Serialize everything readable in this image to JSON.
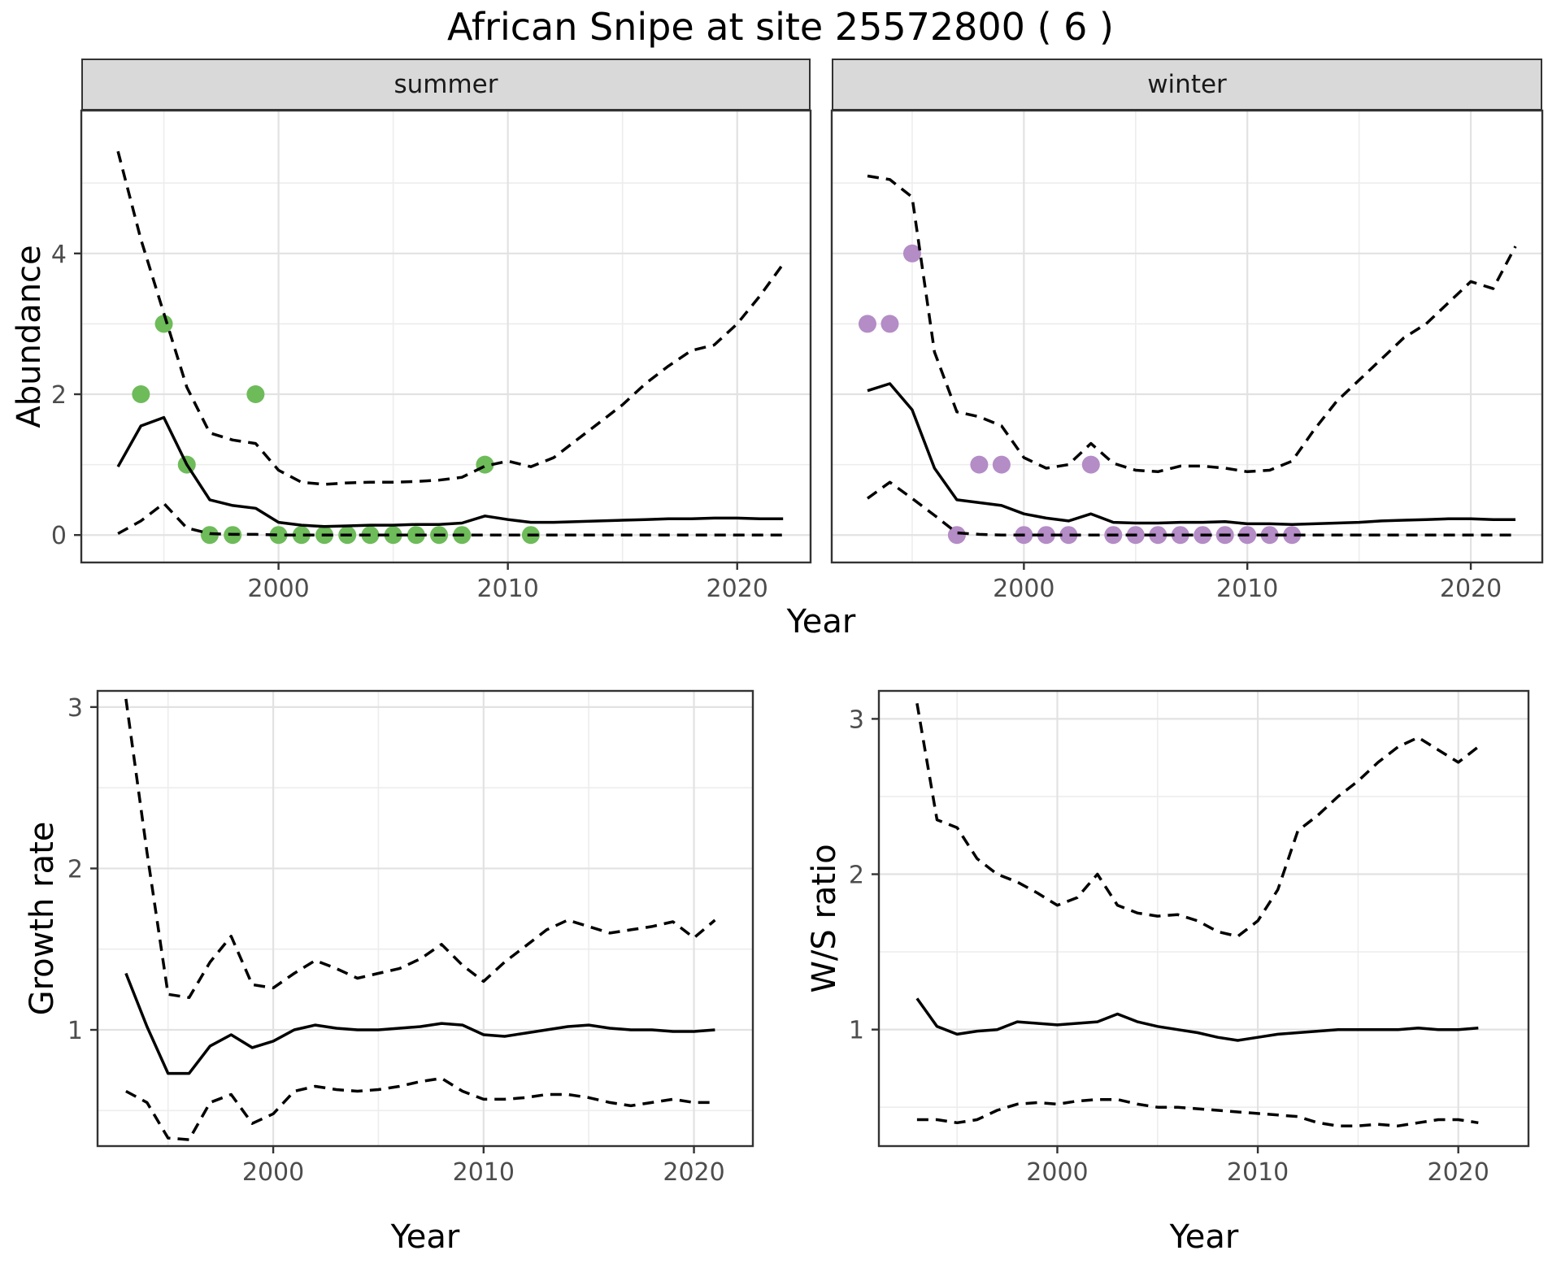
{
  "title": "African Snipe at site 25572800 ( 6 )",
  "labels": {
    "facet_summer": "summer",
    "facet_winter": "winter",
    "abundance_axis": "Abundance",
    "growth_axis": "Growth rate",
    "ws_axis": "W/S ratio",
    "year_axis_top": "Year",
    "year_axis_growth": "Year",
    "year_axis_ws": "Year"
  },
  "colors": {
    "summer_points": "#6EBB5A",
    "winter_points": "#B48CC6",
    "line": "#000000",
    "strip_bg": "#D9D9D9",
    "tick_label": "#4D4D4D",
    "grid_major": "#E2E2E2",
    "grid_minor": "#EDEDED",
    "panel_border": "#333333",
    "panel_bg": "#FFFFFF"
  },
  "chart_data": [
    {
      "id": "abundance-summer",
      "type": "line",
      "facet": "summer",
      "xlabel": "Year",
      "ylabel": "Abundance",
      "xlim": [
        1991.4,
        2023.2
      ],
      "ylim": [
        -0.39,
        6.03
      ],
      "x_major_ticks": [
        2000,
        2010,
        2020
      ],
      "x_minor_ticks": [
        1995,
        2005,
        2015
      ],
      "y_major_ticks": [
        0,
        2,
        4
      ],
      "y_minor_ticks": [
        1,
        3,
        5
      ],
      "x": [
        1993,
        1994,
        1995,
        1996,
        1997,
        1998,
        1999,
        2000,
        2001,
        2002,
        2003,
        2004,
        2005,
        2006,
        2007,
        2008,
        2009,
        2010,
        2011,
        2012,
        2013,
        2014,
        2015,
        2016,
        2017,
        2018,
        2019,
        2020,
        2021,
        2022
      ],
      "series": [
        {
          "name": "median-estimate",
          "style": "solid",
          "values": [
            0.97,
            1.55,
            1.67,
            1.0,
            0.5,
            0.42,
            0.38,
            0.18,
            0.14,
            0.12,
            0.13,
            0.14,
            0.14,
            0.15,
            0.15,
            0.17,
            0.27,
            0.22,
            0.18,
            0.18,
            0.19,
            0.2,
            0.21,
            0.22,
            0.23,
            0.23,
            0.24,
            0.24,
            0.23,
            0.23
          ]
        },
        {
          "name": "upper-credible-interval",
          "style": "dashed",
          "values": [
            5.45,
            4.2,
            3.15,
            2.1,
            1.45,
            1.35,
            1.3,
            0.92,
            0.75,
            0.72,
            0.74,
            0.75,
            0.75,
            0.76,
            0.78,
            0.82,
            0.98,
            1.05,
            0.97,
            1.1,
            1.35,
            1.6,
            1.85,
            2.15,
            2.4,
            2.62,
            2.7,
            3.0,
            3.4,
            3.85
          ]
        },
        {
          "name": "lower-credible-interval",
          "style": "dashed",
          "values": [
            0.02,
            0.2,
            0.45,
            0.1,
            0.02,
            0.01,
            0.01,
            0,
            0,
            0,
            0,
            0,
            0,
            0,
            0,
            0,
            0,
            0,
            0,
            0,
            0,
            0,
            0,
            0,
            0,
            0,
            0,
            0,
            0,
            0
          ]
        }
      ],
      "points": {
        "name": "observed-count",
        "color_key": "summer_points",
        "x": [
          1994,
          1995,
          1996,
          1997,
          1998,
          1999,
          2000,
          2001,
          2002,
          2003,
          2004,
          2005,
          2006,
          2007,
          2008,
          2009,
          2011
        ],
        "y": [
          2,
          3,
          1,
          0,
          0,
          2,
          0,
          0,
          0,
          0,
          0,
          0,
          0,
          0,
          0,
          1,
          0
        ]
      }
    },
    {
      "id": "abundance-winter",
      "type": "line",
      "facet": "winter",
      "xlabel": "Year",
      "ylabel": "Abundance",
      "xlim": [
        1991.4,
        2023.2
      ],
      "ylim": [
        -0.39,
        6.03
      ],
      "x_major_ticks": [
        2000,
        2010,
        2020
      ],
      "x_minor_ticks": [
        1995,
        2005,
        2015
      ],
      "y_major_ticks": [
        0,
        2,
        4
      ],
      "y_minor_ticks": [
        1,
        3,
        5
      ],
      "x": [
        1993,
        1994,
        1995,
        1996,
        1997,
        1998,
        1999,
        2000,
        2001,
        2002,
        2003,
        2004,
        2005,
        2006,
        2007,
        2008,
        2009,
        2010,
        2011,
        2012,
        2013,
        2014,
        2015,
        2016,
        2017,
        2018,
        2019,
        2020,
        2021,
        2022
      ],
      "series": [
        {
          "name": "median-estimate",
          "style": "solid",
          "values": [
            2.05,
            2.15,
            1.78,
            0.95,
            0.5,
            0.46,
            0.42,
            0.3,
            0.24,
            0.2,
            0.3,
            0.18,
            0.17,
            0.17,
            0.18,
            0.18,
            0.19,
            0.16,
            0.16,
            0.15,
            0.16,
            0.17,
            0.18,
            0.2,
            0.21,
            0.22,
            0.23,
            0.23,
            0.22,
            0.22
          ]
        },
        {
          "name": "upper-credible-interval",
          "style": "dashed",
          "values": [
            5.1,
            5.05,
            4.8,
            2.6,
            1.75,
            1.68,
            1.55,
            1.1,
            0.95,
            1.0,
            1.3,
            1.02,
            0.92,
            0.9,
            0.98,
            0.98,
            0.95,
            0.9,
            0.92,
            1.05,
            1.5,
            1.9,
            2.2,
            2.5,
            2.8,
            3.0,
            3.3,
            3.6,
            3.5,
            4.1
          ]
        },
        {
          "name": "lower-credible-interval",
          "style": "dashed",
          "values": [
            0.52,
            0.75,
            0.52,
            0.28,
            0.03,
            0.01,
            0,
            0,
            0,
            0,
            0,
            0,
            0,
            0,
            0,
            0,
            0,
            0,
            0,
            0,
            0,
            0,
            0,
            0,
            0,
            0,
            0,
            0,
            0,
            0
          ]
        }
      ],
      "points": {
        "name": "observed-count",
        "color_key": "winter_points",
        "x": [
          1993,
          1994,
          1995,
          1997,
          1998,
          1999,
          2000,
          2001,
          2002,
          2003,
          2004,
          2005,
          2006,
          2007,
          2008,
          2009,
          2010,
          2011,
          2012
        ],
        "y": [
          3,
          3,
          4,
          0,
          1,
          1,
          0,
          0,
          0,
          1,
          0,
          0,
          0,
          0,
          0,
          0,
          0,
          0,
          0
        ]
      }
    },
    {
      "id": "growth-rate",
      "type": "line",
      "facet": null,
      "xlabel": "Year",
      "ylabel": "Growth rate",
      "xlim": [
        1991.65,
        2022.8
      ],
      "ylim": [
        0.28,
        3.1
      ],
      "x_major_ticks": [
        2000,
        2010,
        2020
      ],
      "x_minor_ticks": [
        1995,
        2005,
        2015
      ],
      "y_major_ticks": [
        1,
        2,
        3
      ],
      "y_minor_ticks": [
        0.5,
        1.5,
        2.5
      ],
      "x": [
        1993,
        1994,
        1995,
        1996,
        1997,
        1998,
        1999,
        2000,
        2001,
        2002,
        2003,
        2004,
        2005,
        2006,
        2007,
        2008,
        2009,
        2010,
        2011,
        2012,
        2013,
        2014,
        2015,
        2016,
        2017,
        2018,
        2019,
        2020,
        2021
      ],
      "series": [
        {
          "name": "median-estimate",
          "style": "solid",
          "values": [
            1.35,
            1.02,
            0.73,
            0.73,
            0.9,
            0.97,
            0.89,
            0.93,
            1.0,
            1.03,
            1.01,
            1.0,
            1.0,
            1.01,
            1.02,
            1.04,
            1.03,
            0.97,
            0.96,
            0.98,
            1.0,
            1.02,
            1.03,
            1.01,
            1.0,
            1.0,
            0.99,
            0.99,
            1.0
          ]
        },
        {
          "name": "upper-credible-interval",
          "style": "dashed",
          "values": [
            3.05,
            2.1,
            1.22,
            1.2,
            1.42,
            1.58,
            1.28,
            1.26,
            1.35,
            1.43,
            1.38,
            1.32,
            1.35,
            1.38,
            1.44,
            1.53,
            1.4,
            1.3,
            1.42,
            1.52,
            1.62,
            1.68,
            1.64,
            1.6,
            1.62,
            1.64,
            1.67,
            1.57,
            1.68
          ]
        },
        {
          "name": "lower-credible-interval",
          "style": "dashed",
          "values": [
            0.62,
            0.55,
            0.33,
            0.32,
            0.55,
            0.6,
            0.42,
            0.48,
            0.62,
            0.65,
            0.63,
            0.62,
            0.63,
            0.65,
            0.68,
            0.7,
            0.62,
            0.57,
            0.57,
            0.58,
            0.6,
            0.6,
            0.58,
            0.55,
            0.53,
            0.55,
            0.57,
            0.55,
            0.55
          ]
        }
      ],
      "points": null
    },
    {
      "id": "ws-ratio",
      "type": "line",
      "facet": null,
      "xlabel": "Year",
      "ylabel": "W/S ratio",
      "xlim": [
        1991.1,
        2023.5
      ],
      "ylim": [
        0.25,
        3.18
      ],
      "x_major_ticks": [
        2000,
        2010,
        2020
      ],
      "x_minor_ticks": [
        1995,
        2005,
        2015
      ],
      "y_major_ticks": [
        1,
        2,
        3
      ],
      "y_minor_ticks": [
        0.5,
        1.5,
        2.5
      ],
      "x": [
        1993,
        1994,
        1995,
        1996,
        1997,
        1998,
        1999,
        2000,
        2001,
        2002,
        2003,
        2004,
        2005,
        2006,
        2007,
        2008,
        2009,
        2010,
        2011,
        2012,
        2013,
        2014,
        2015,
        2016,
        2017,
        2018,
        2019,
        2020,
        2021
      ],
      "series": [
        {
          "name": "median-estimate",
          "style": "solid",
          "values": [
            1.2,
            1.02,
            0.97,
            0.99,
            1.0,
            1.05,
            1.04,
            1.03,
            1.04,
            1.05,
            1.1,
            1.05,
            1.02,
            1.0,
            0.98,
            0.95,
            0.93,
            0.95,
            0.97,
            0.98,
            0.99,
            1.0,
            1.0,
            1.0,
            1.0,
            1.01,
            1.0,
            1.0,
            1.01
          ]
        },
        {
          "name": "upper-credible-interval",
          "style": "dashed",
          "values": [
            3.1,
            2.35,
            2.3,
            2.1,
            2.0,
            1.95,
            1.88,
            1.8,
            1.85,
            2.0,
            1.8,
            1.75,
            1.73,
            1.74,
            1.7,
            1.63,
            1.6,
            1.7,
            1.9,
            2.28,
            2.38,
            2.5,
            2.6,
            2.72,
            2.82,
            2.88,
            2.8,
            2.72,
            2.82
          ]
        },
        {
          "name": "lower-credible-interval",
          "style": "dashed",
          "values": [
            0.42,
            0.42,
            0.4,
            0.42,
            0.48,
            0.52,
            0.53,
            0.52,
            0.54,
            0.55,
            0.55,
            0.52,
            0.5,
            0.5,
            0.49,
            0.48,
            0.47,
            0.46,
            0.45,
            0.44,
            0.4,
            0.38,
            0.38,
            0.39,
            0.38,
            0.4,
            0.42,
            0.42,
            0.4
          ]
        }
      ],
      "points": null
    }
  ]
}
